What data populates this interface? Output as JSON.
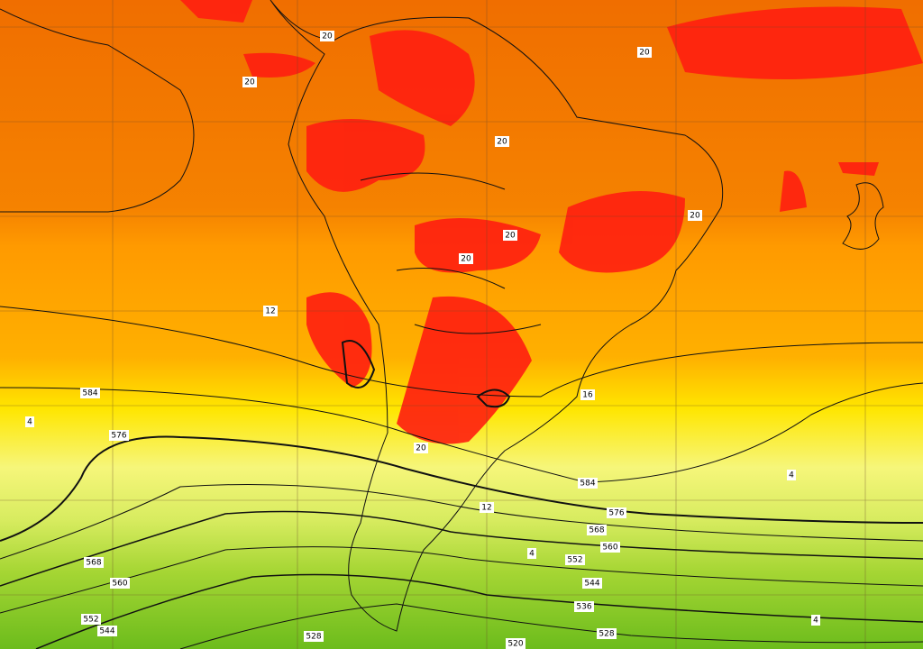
{
  "map": {
    "labels": [
      20,
      20,
      20,
      20,
      20,
      20,
      20,
      20,
      12,
      12,
      16,
      4,
      4,
      4,
      4,
      584,
      584,
      576,
      576,
      568,
      568,
      560,
      560,
      552,
      552,
      544,
      544,
      536,
      528,
      528,
      520
    ]
  }
}
